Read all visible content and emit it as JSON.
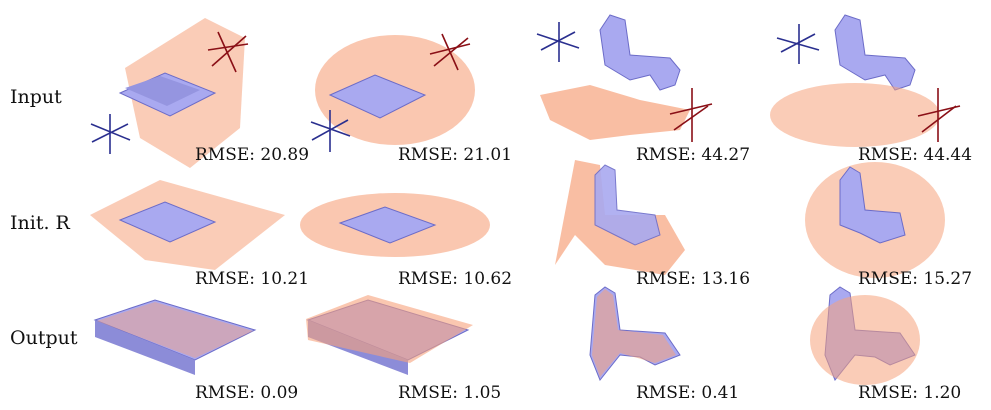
{
  "rows": [
    {
      "label": "Input",
      "cells": [
        {
          "object": "house",
          "cloud": "sparse",
          "rmse": "RMSE: 20.89"
        },
        {
          "object": "house",
          "cloud": "noisy",
          "rmse": "RMSE: 21.01"
        },
        {
          "object": "horse",
          "cloud": "sparse",
          "rmse": "RMSE: 44.27"
        },
        {
          "object": "horse",
          "cloud": "noisy",
          "rmse": "RMSE: 44.44"
        }
      ]
    },
    {
      "label": "Init. R",
      "cells": [
        {
          "object": "house",
          "cloud": "sparse",
          "rmse": "RMSE: 10.21"
        },
        {
          "object": "house",
          "cloud": "noisy",
          "rmse": "RMSE: 10.62"
        },
        {
          "object": "horse",
          "cloud": "sparse",
          "rmse": "RMSE: 13.16"
        },
        {
          "object": "horse",
          "cloud": "noisy",
          "rmse": "RMSE: 15.27"
        }
      ]
    },
    {
      "label": "Output",
      "cells": [
        {
          "object": "house",
          "cloud": "sparse",
          "rmse": "RMSE: 0.09"
        },
        {
          "object": "house",
          "cloud": "noisy",
          "rmse": "RMSE: 1.05"
        },
        {
          "object": "horse",
          "cloud": "sparse",
          "rmse": "RMSE: 0.41"
        },
        {
          "object": "horse",
          "cloud": "noisy",
          "rmse": "RMSE: 1.20"
        }
      ]
    }
  ],
  "colors": {
    "model": "#a9a9f0",
    "model_edge": "#6c6cc8",
    "cloud": "#f6a27c",
    "axis_target": "#2a2f8f",
    "axis_source": "#8a0f16"
  }
}
